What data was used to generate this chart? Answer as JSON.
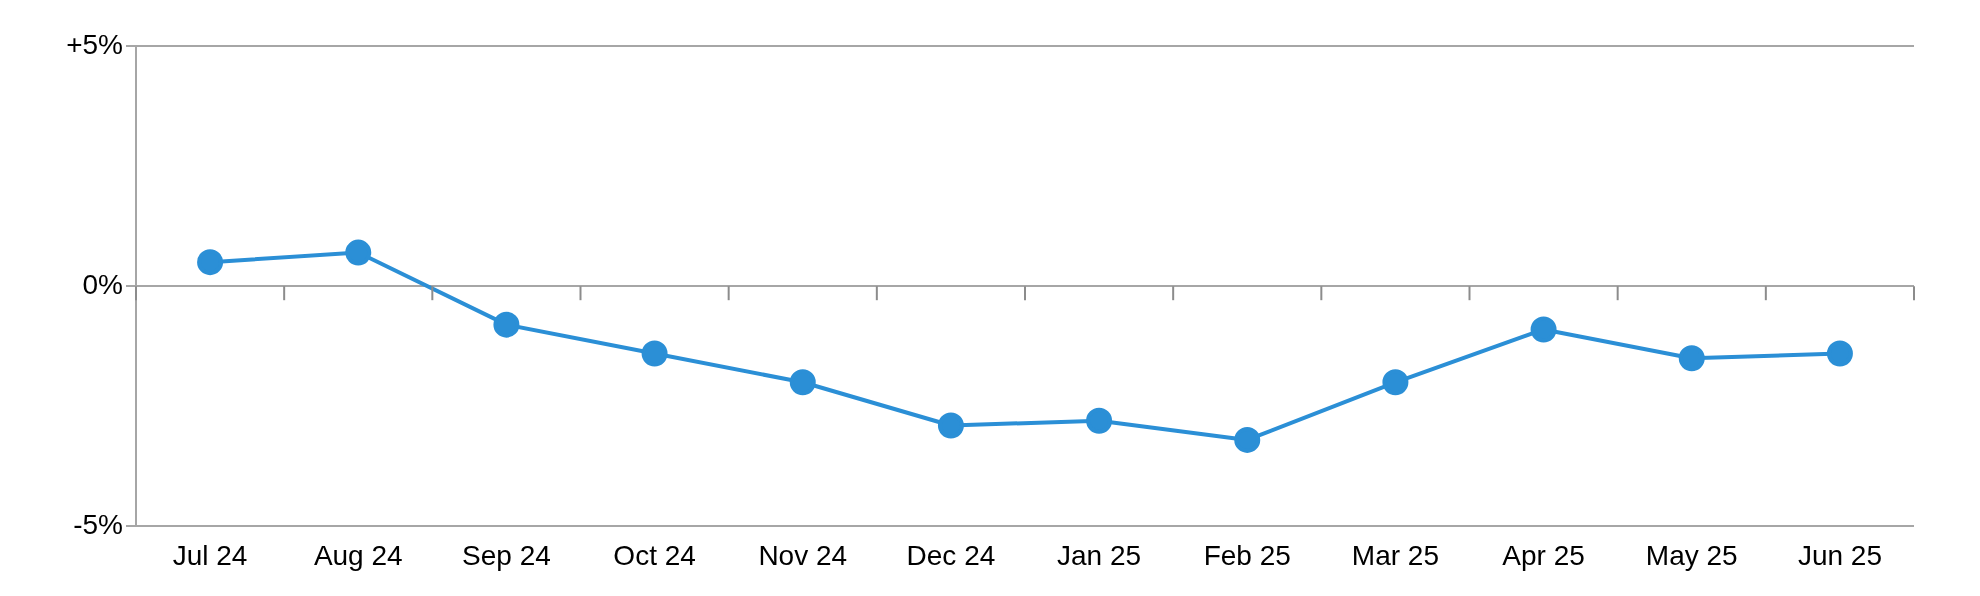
{
  "chart_data": {
    "type": "line",
    "categories": [
      "Jul 24",
      "Aug 24",
      "Sep 24",
      "Oct 24",
      "Nov 24",
      "Dec 24",
      "Jan 25",
      "Feb 25",
      "Mar 25",
      "Apr 25",
      "May 25",
      "Jun 25"
    ],
    "series": [
      {
        "color": "#2b8fd6",
        "values": [
          0.5,
          0.7,
          -0.8,
          -1.4,
          -2.0,
          -2.9,
          -2.8,
          -3.2,
          -2.0,
          -0.9,
          -1.5,
          -1.4
        ]
      }
    ],
    "ylim": [
      -5,
      5
    ],
    "yticks": [
      {
        "value": -5,
        "label": "-5%"
      },
      {
        "value": 0,
        "label": "0%"
      },
      {
        "value": 5,
        "label": "+5%"
      }
    ],
    "grid": "y",
    "legend": false,
    "marker": "circle",
    "line_style": "solid"
  }
}
